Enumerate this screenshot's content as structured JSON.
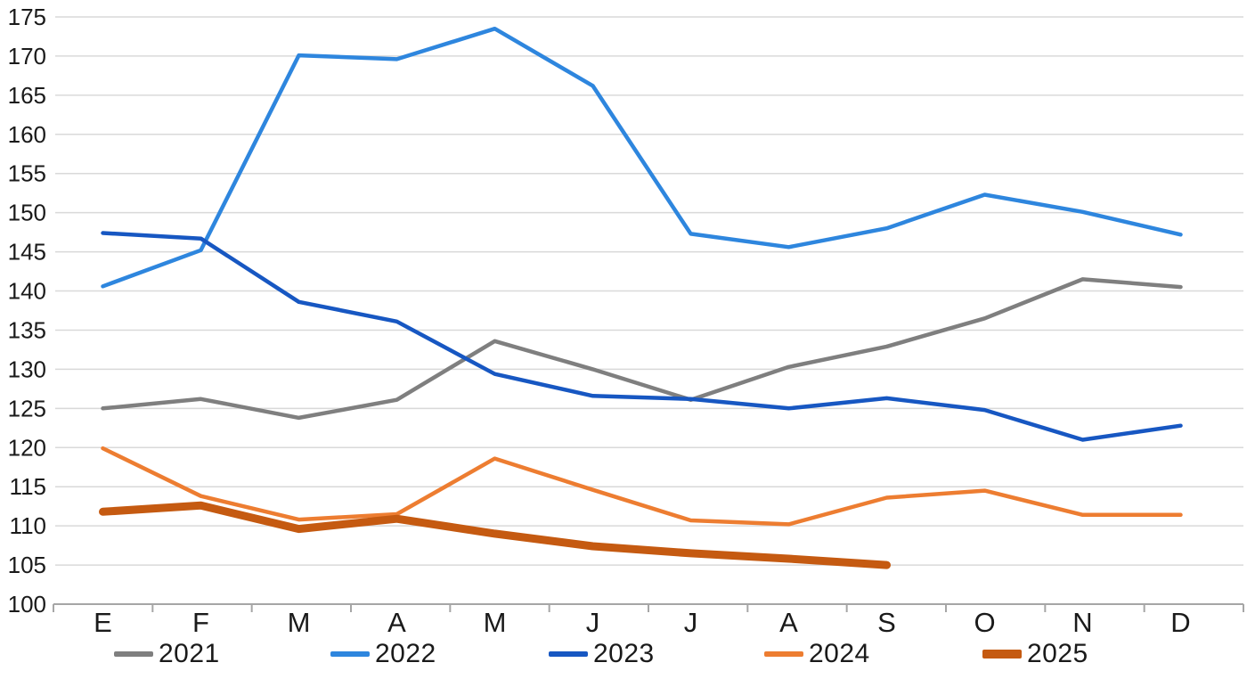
{
  "chart_data": {
    "type": "line",
    "title": "",
    "xlabel": "",
    "ylabel": "",
    "categories": [
      "E",
      "F",
      "M",
      "A",
      "M",
      "J",
      "J",
      "A",
      "S",
      "O",
      "N",
      "D"
    ],
    "series": [
      {
        "name": "2021",
        "color": "#7F7F7F",
        "stroke_width": 4.5,
        "values": [
          125.0,
          126.2,
          123.8,
          126.1,
          133.6,
          130.0,
          126.1,
          130.3,
          132.9,
          136.5,
          141.5,
          140.5
        ]
      },
      {
        "name": "2022",
        "color": "#2E86DE",
        "stroke_width": 4.5,
        "values": [
          140.6,
          145.2,
          170.1,
          169.6,
          173.5,
          166.2,
          147.3,
          145.6,
          148.0,
          152.3,
          150.1,
          147.2
        ]
      },
      {
        "name": "2023",
        "color": "#1757C2",
        "stroke_width": 4.5,
        "values": [
          147.4,
          146.7,
          138.6,
          136.1,
          129.4,
          126.6,
          126.2,
          125.0,
          126.3,
          124.8,
          121.0,
          122.8
        ]
      },
      {
        "name": "2024",
        "color": "#ED7D31",
        "stroke_width": 4.5,
        "values": [
          119.9,
          113.8,
          110.8,
          111.5,
          118.6,
          114.6,
          110.7,
          110.2,
          113.6,
          114.5,
          111.4,
          111.4
        ]
      },
      {
        "name": "2025",
        "color": "#C55A11",
        "stroke_width": 9,
        "values": [
          111.8,
          112.6,
          109.6,
          110.9,
          109.0,
          107.4,
          106.5,
          105.8,
          105.0
        ]
      }
    ],
    "ylim": [
      100,
      175
    ],
    "yticks": [
      100,
      105,
      110,
      115,
      120,
      125,
      130,
      135,
      140,
      145,
      150,
      155,
      160,
      165,
      170,
      175
    ],
    "grid": "horizontal",
    "legend_position": "bottom",
    "colors": {
      "grid_line": "#D9D9D9",
      "axis_line": "#A6A6A6",
      "tick_label": "#1A1A1A",
      "background": "#FFFFFF"
    }
  }
}
